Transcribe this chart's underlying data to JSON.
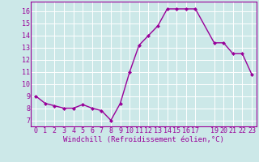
{
  "x": [
    0,
    1,
    2,
    3,
    4,
    5,
    6,
    7,
    8,
    9,
    10,
    11,
    12,
    13,
    14,
    15,
    16,
    17,
    19,
    20,
    21,
    22,
    23
  ],
  "y": [
    9.0,
    8.4,
    8.2,
    8.0,
    8.0,
    8.3,
    8.0,
    7.8,
    7.0,
    8.4,
    11.0,
    13.2,
    14.0,
    14.8,
    16.2,
    16.2,
    16.2,
    16.2,
    13.4,
    13.4,
    12.5,
    12.5,
    10.8
  ],
  "line_color": "#990099",
  "marker": "D",
  "marker_size": 2.0,
  "line_width": 1.0,
  "bg_color": "#cce8e8",
  "grid_color": "#ffffff",
  "xlabel": "Windchill (Refroidissement éolien,°C)",
  "xlabel_color": "#990099",
  "xlabel_fontsize": 6.5,
  "tick_color": "#990099",
  "tick_fontsize": 6.0,
  "xlim": [
    -0.5,
    23.5
  ],
  "ylim": [
    6.5,
    16.8
  ],
  "yticks": [
    7,
    8,
    9,
    10,
    11,
    12,
    13,
    14,
    15,
    16
  ],
  "xticks": [
    0,
    1,
    2,
    3,
    4,
    5,
    6,
    7,
    8,
    9,
    10,
    11,
    12,
    13,
    14,
    15,
    16,
    17,
    19,
    20,
    21,
    22,
    23
  ]
}
